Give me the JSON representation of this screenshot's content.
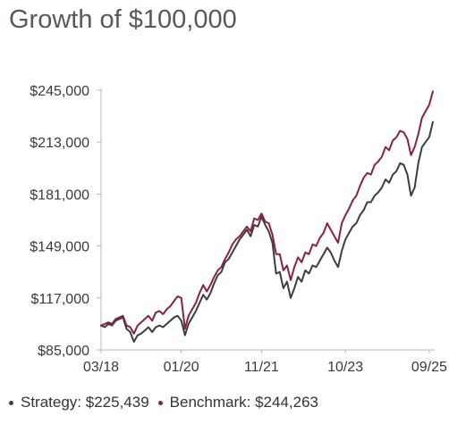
{
  "chart_data": {
    "type": "line",
    "title": "Growth of $100,000",
    "ylim": [
      85000,
      245000
    ],
    "y_ticks": [
      "$85,000",
      "$117,000",
      "$149,000",
      "$181,000",
      "$213,000",
      "$245,000"
    ],
    "y_tick_values": [
      85000,
      117000,
      149000,
      181000,
      213000,
      245000
    ],
    "x_ticks": [
      "03/18",
      "01/20",
      "11/21",
      "10/23",
      "09/25"
    ],
    "x_tick_months": [
      0,
      22,
      44,
      67,
      90
    ],
    "grid": false,
    "legend_position": "bottom",
    "series": [
      {
        "name": "Strategy",
        "legend_label": "Strategy: $225,439",
        "color": "#3d3d3d",
        "x": [
          0,
          1,
          2,
          3,
          4,
          5,
          6,
          7,
          8,
          9,
          10,
          11,
          12,
          13,
          14,
          15,
          16,
          17,
          18,
          19,
          20,
          21,
          22,
          23,
          24,
          25,
          26,
          27,
          28,
          29,
          30,
          31,
          32,
          33,
          34,
          35,
          36,
          37,
          38,
          39,
          40,
          41,
          42,
          43,
          44,
          45,
          46,
          47,
          48,
          49,
          50,
          51,
          52,
          53,
          54,
          55,
          56,
          57,
          58,
          59,
          60,
          61,
          62,
          63,
          64,
          65,
          66,
          67,
          68,
          69,
          70,
          71,
          72,
          73,
          74,
          75,
          76,
          77,
          78,
          79,
          80,
          81,
          82,
          83,
          84,
          85,
          86,
          87,
          88,
          89,
          90,
          91
        ],
        "values": [
          100000,
          99000,
          101000,
          100000,
          103000,
          104000,
          105000,
          98000,
          96000,
          90000,
          94000,
          95000,
          97000,
          99000,
          96000,
          99000,
          100000,
          99000,
          101000,
          103000,
          105000,
          106000,
          103000,
          94000,
          101000,
          105000,
          109000,
          114000,
          119000,
          116000,
          120000,
          126000,
          131000,
          133000,
          139000,
          141000,
          145000,
          149000,
          153000,
          156000,
          159000,
          155000,
          162000,
          161000,
          167000,
          162000,
          158000,
          151000,
          132000,
          133000,
          123000,
          127000,
          117000,
          123000,
          130000,
          127000,
          134000,
          132000,
          137000,
          136000,
          140000,
          144000,
          148000,
          145000,
          140000,
          136000,
          146000,
          153000,
          157000,
          161000,
          163000,
          168000,
          171000,
          176000,
          176000,
          180000,
          182000,
          185000,
          190000,
          188000,
          193000,
          195000,
          200000,
          199000,
          193000,
          180000,
          185000,
          200000,
          210000,
          213000,
          216000,
          225439
        ]
      },
      {
        "name": "Benchmark",
        "legend_label": "Benchmark: $244,263",
        "color": "#8c1f45",
        "x": [
          0,
          1,
          2,
          3,
          4,
          5,
          6,
          7,
          8,
          9,
          10,
          11,
          12,
          13,
          14,
          15,
          16,
          17,
          18,
          19,
          20,
          21,
          22,
          23,
          24,
          25,
          26,
          27,
          28,
          29,
          30,
          31,
          32,
          33,
          34,
          35,
          36,
          37,
          38,
          39,
          40,
          41,
          42,
          43,
          44,
          45,
          46,
          47,
          48,
          49,
          50,
          51,
          52,
          53,
          54,
          55,
          56,
          57,
          58,
          59,
          60,
          61,
          62,
          63,
          64,
          65,
          66,
          67,
          68,
          69,
          70,
          71,
          72,
          73,
          74,
          75,
          76,
          77,
          78,
          79,
          80,
          81,
          82,
          83,
          84,
          85,
          86,
          87,
          88,
          89,
          90,
          91
        ],
        "values": [
          100000,
          101000,
          102000,
          101000,
          104000,
          105000,
          106000,
          100000,
          99000,
          95000,
          100000,
          102000,
          104000,
          106000,
          103000,
          108000,
          109000,
          107000,
          110000,
          112000,
          115000,
          118000,
          117000,
          98000,
          106000,
          110000,
          114000,
          120000,
          125000,
          121000,
          125000,
          130000,
          134000,
          136000,
          141000,
          145000,
          150000,
          153000,
          155000,
          158000,
          161000,
          158000,
          166000,
          165000,
          169000,
          164000,
          163000,
          156000,
          144000,
          144000,
          134000,
          137000,
          128000,
          136000,
          142000,
          139000,
          145000,
          144000,
          150000,
          149000,
          154000,
          157000,
          163000,
          159000,
          155000,
          151000,
          163000,
          168000,
          172000,
          177000,
          180000,
          186000,
          191000,
          194000,
          193000,
          199000,
          201000,
          204000,
          210000,
          208000,
          214000,
          216000,
          220000,
          219000,
          215000,
          205000,
          210000,
          218000,
          228000,
          232000,
          236000,
          244263
        ]
      }
    ]
  }
}
